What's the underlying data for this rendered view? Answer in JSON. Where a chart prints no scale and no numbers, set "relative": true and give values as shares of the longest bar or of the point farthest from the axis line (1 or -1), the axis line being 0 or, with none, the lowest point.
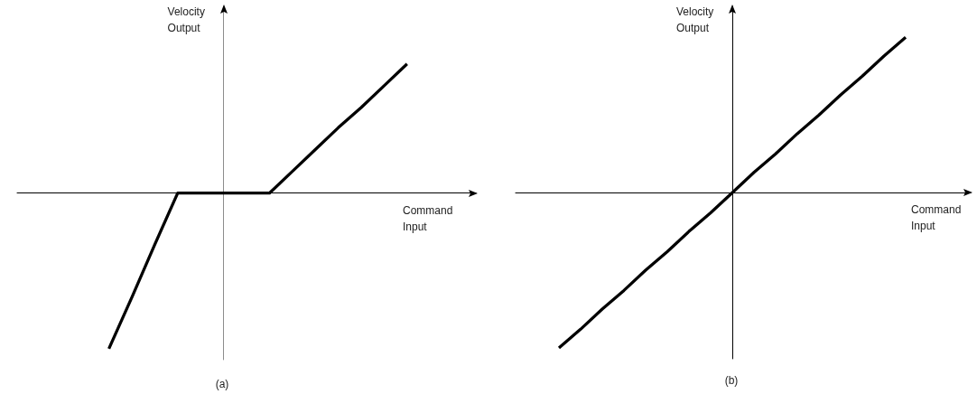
{
  "chart_data": [
    {
      "type": "line",
      "title": "(a)",
      "xlabel": "Command Input",
      "ylabel": "Velocity Output",
      "relative": true,
      "marker": "none",
      "color": "#000000",
      "categories": [
        null,
        null,
        null,
        null,
        null,
        null,
        null,
        null,
        null,
        null,
        null,
        null,
        null,
        null,
        null,
        null,
        null,
        null,
        null,
        null,
        null
      ],
      "values": [
        null,
        null,
        null,
        null,
        -1,
        -0.67,
        -0.33,
        0,
        0,
        0,
        0,
        0,
        0.14,
        0.28,
        0.42,
        0.55,
        0.69,
        0.83,
        null,
        null,
        null
      ]
    },
    {
      "type": "line",
      "title": "(b)",
      "xlabel": "Command Input",
      "ylabel": "Velocity Output",
      "relative": true,
      "marker": "none",
      "color": "#000000",
      "categories": [
        null,
        null,
        null,
        null,
        null,
        null,
        null,
        null,
        null,
        null,
        null,
        null,
        null,
        null,
        null,
        null,
        null,
        null,
        null,
        null,
        null,
        null
      ],
      "values": [
        null,
        null,
        -1,
        -0.88,
        -0.75,
        -0.63,
        -0.5,
        -0.38,
        -0.25,
        -0.13,
        0,
        0.13,
        0.25,
        0.38,
        0.5,
        0.63,
        0.75,
        0.88,
        1,
        null,
        null,
        null
      ]
    }
  ]
}
